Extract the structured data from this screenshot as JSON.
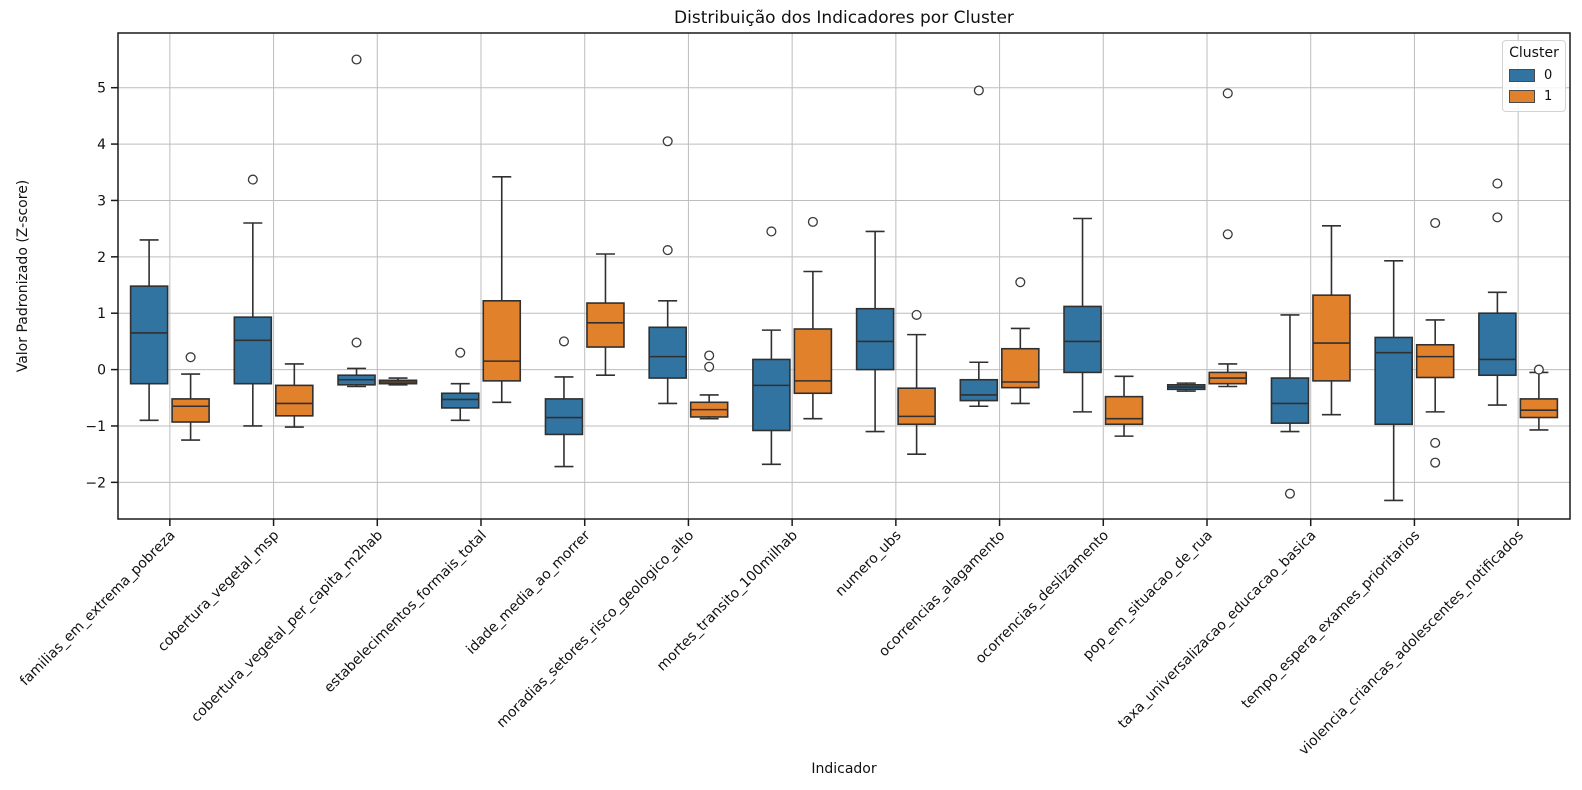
{
  "chart_data": {
    "type": "boxplot",
    "title": "Distribuição dos Indicadores por Cluster",
    "xlabel": "Indicador",
    "ylabel": "Valor Padronizado (Z-score)",
    "legend_title": "Cluster",
    "legend_position": "upper right",
    "grid": true,
    "ylim": [
      -2.65,
      5.97
    ],
    "yticks": [
      -2,
      -1,
      0,
      1,
      2,
      3,
      4,
      5
    ],
    "grid_color": "#bdbdbd",
    "box_edge_color": "#303030",
    "categories": [
      "familias_em_extrema_pobreza",
      "cobertura_vegetal_msp",
      "cobertura_vegetal_per_capita_m2hab",
      "estabelecimentos_formais_total",
      "idade_media_ao_morrer",
      "moradias_setores_risco_geologico_alto",
      "mortes_transito_100milhab",
      "numero_ubs",
      "ocorrencias_alagamento",
      "ocorrencias_deslizamento",
      "pop_em_situacao_de_rua",
      "taxa_universalizacao_educacao_basica",
      "tempo_espera_exames_prioritarios",
      "violencia_criancas_adolescentes_notificados"
    ],
    "series": [
      {
        "name": "0",
        "color": "#3274a1",
        "boxes": [
          {
            "whislo": -0.9,
            "q1": -0.25,
            "med": 0.65,
            "q3": 1.48,
            "whishi": 2.3,
            "fliers": []
          },
          {
            "whislo": -1.0,
            "q1": -0.25,
            "med": 0.52,
            "q3": 0.93,
            "whishi": 2.6,
            "fliers": [
              3.37
            ]
          },
          {
            "whislo": -0.3,
            "q1": -0.27,
            "med": -0.18,
            "q3": -0.1,
            "whishi": 0.02,
            "fliers": [
              5.5,
              0.48
            ]
          },
          {
            "whislo": -0.9,
            "q1": -0.68,
            "med": -0.53,
            "q3": -0.42,
            "whishi": -0.25,
            "fliers": [
              0.3
            ]
          },
          {
            "whislo": -1.72,
            "q1": -1.15,
            "med": -0.85,
            "q3": -0.52,
            "whishi": -0.13,
            "fliers": [
              0.5
            ]
          },
          {
            "whislo": -0.6,
            "q1": -0.15,
            "med": 0.23,
            "q3": 0.75,
            "whishi": 1.22,
            "fliers": [
              4.05,
              2.12
            ]
          },
          {
            "whislo": -1.68,
            "q1": -1.08,
            "med": -0.28,
            "q3": 0.18,
            "whishi": 0.7,
            "fliers": [
              2.45
            ]
          },
          {
            "whislo": -1.1,
            "q1": 0.0,
            "med": 0.5,
            "q3": 1.08,
            "whishi": 2.45,
            "fliers": []
          },
          {
            "whislo": -0.65,
            "q1": -0.55,
            "med": -0.45,
            "q3": -0.18,
            "whishi": 0.13,
            "fliers": [
              4.95
            ]
          },
          {
            "whislo": -0.75,
            "q1": -0.05,
            "med": 0.5,
            "q3": 1.12,
            "whishi": 2.68,
            "fliers": []
          },
          {
            "whislo": -0.38,
            "q1": -0.35,
            "med": -0.31,
            "q3": -0.27,
            "whishi": -0.24,
            "fliers": []
          },
          {
            "whislo": -1.1,
            "q1": -0.95,
            "med": -0.6,
            "q3": -0.15,
            "whishi": 0.97,
            "fliers": [
              -2.2
            ]
          },
          {
            "whislo": -2.32,
            "q1": -0.97,
            "med": 0.3,
            "q3": 0.57,
            "whishi": 1.93,
            "fliers": []
          },
          {
            "whislo": -0.63,
            "q1": -0.1,
            "med": 0.18,
            "q3": 1.0,
            "whishi": 1.37,
            "fliers": [
              3.3,
              2.7
            ]
          }
        ]
      },
      {
        "name": "1",
        "color": "#e1812c",
        "boxes": [
          {
            "whislo": -1.25,
            "q1": -0.93,
            "med": -0.65,
            "q3": -0.52,
            "whishi": -0.08,
            "fliers": [
              0.22
            ]
          },
          {
            "whislo": -1.02,
            "q1": -0.82,
            "med": -0.6,
            "q3": -0.28,
            "whishi": 0.1,
            "fliers": []
          },
          {
            "whislo": -0.27,
            "q1": -0.25,
            "med": -0.22,
            "q3": -0.19,
            "whishi": -0.15,
            "fliers": []
          },
          {
            "whislo": -0.58,
            "q1": -0.2,
            "med": 0.15,
            "q3": 1.22,
            "whishi": 3.42,
            "fliers": []
          },
          {
            "whislo": -0.1,
            "q1": 0.4,
            "med": 0.83,
            "q3": 1.18,
            "whishi": 2.05,
            "fliers": []
          },
          {
            "whislo": -0.87,
            "q1": -0.84,
            "med": -0.71,
            "q3": -0.58,
            "whishi": -0.45,
            "fliers": [
              0.25,
              0.05
            ]
          },
          {
            "whislo": -0.87,
            "q1": -0.42,
            "med": -0.2,
            "q3": 0.72,
            "whishi": 1.74,
            "fliers": [
              2.62
            ]
          },
          {
            "whislo": -1.5,
            "q1": -0.97,
            "med": -0.83,
            "q3": -0.33,
            "whishi": 0.62,
            "fliers": [
              0.97
            ]
          },
          {
            "whislo": -0.6,
            "q1": -0.32,
            "med": -0.22,
            "q3": 0.37,
            "whishi": 0.73,
            "fliers": [
              1.55
            ]
          },
          {
            "whislo": -1.18,
            "q1": -0.97,
            "med": -0.87,
            "q3": -0.48,
            "whishi": -0.12,
            "fliers": []
          },
          {
            "whislo": -0.3,
            "q1": -0.25,
            "med": -0.15,
            "q3": -0.05,
            "whishi": 0.1,
            "fliers": [
              4.9,
              2.4
            ]
          },
          {
            "whislo": -0.8,
            "q1": -0.2,
            "med": 0.47,
            "q3": 1.32,
            "whishi": 2.55,
            "fliers": []
          },
          {
            "whislo": -0.75,
            "q1": -0.14,
            "med": 0.23,
            "q3": 0.44,
            "whishi": 0.88,
            "fliers": [
              2.6,
              -1.3,
              -1.65
            ]
          },
          {
            "whislo": -1.07,
            "q1": -0.85,
            "med": -0.72,
            "q3": -0.52,
            "whishi": -0.05,
            "fliers": [
              0.0
            ]
          }
        ]
      }
    ]
  }
}
